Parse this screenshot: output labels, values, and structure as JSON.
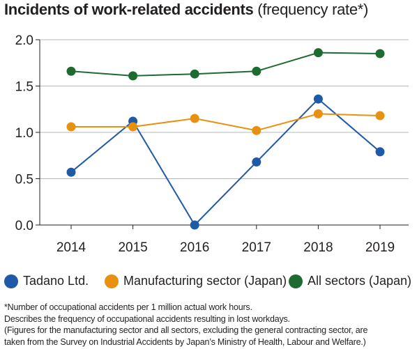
{
  "title": {
    "main": "Incidents of work-related accidents",
    "sub": " (frequency rate*)"
  },
  "colors": {
    "tadano": "#1f5aa6",
    "manufacturing": "#e8900f",
    "all_sectors": "#1e6b32",
    "grid": "#9d9fa2",
    "axis": "#231f20"
  },
  "chart_data": {
    "type": "line",
    "title": "Incidents of work-related accidents (frequency rate*)",
    "xlabel": "",
    "ylabel": "",
    "x": [
      "2014",
      "2015",
      "2016",
      "2017",
      "2018",
      "2019"
    ],
    "ylim": [
      0,
      2.0
    ],
    "yticks": [
      "0.0",
      "0.5",
      "1.0",
      "1.5",
      "2.0"
    ],
    "grid": true,
    "legend_position": "bottom",
    "series": [
      {
        "name": "Tadano Ltd.",
        "color": "#1f5aa6",
        "values": [
          0.57,
          1.12,
          0.0,
          0.68,
          1.36,
          0.79
        ]
      },
      {
        "name": "Manufacturing sector (Japan)",
        "color": "#e8900f",
        "values": [
          1.06,
          1.06,
          1.15,
          1.02,
          1.2,
          1.18
        ]
      },
      {
        "name": "All sectors (Japan)",
        "color": "#1e6b32",
        "values": [
          1.66,
          1.61,
          1.63,
          1.66,
          1.86,
          1.85
        ]
      }
    ]
  },
  "notes": [
    "*Number of occupational accidents per 1 million actual work hours.",
    "Describes the frequency of occupational accidents resulting in lost workdays.",
    "(Figures for the manufacturing sector and all sectors, excluding the general contracting sector, are",
    "taken from the Survey on Industrial Accidents by Japan’s Ministry of Health, Labour and Welfare.)"
  ]
}
